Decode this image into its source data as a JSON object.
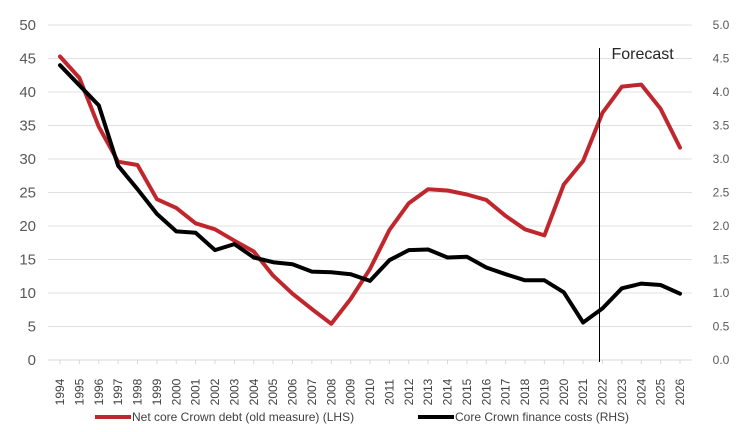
{
  "chart_data": {
    "type": "line",
    "x": [
      "1994",
      "1995",
      "1996",
      "1997",
      "1998",
      "1999",
      "2000",
      "2001",
      "2002",
      "2003",
      "2004",
      "2005",
      "2006",
      "2007",
      "2008",
      "2009",
      "2010",
      "2011",
      "2012",
      "2013",
      "2014",
      "2015",
      "2016",
      "2017",
      "2018",
      "2019",
      "2020",
      "2021",
      "2022",
      "2023",
      "2024",
      "2025",
      "2026"
    ],
    "ylim_left": [
      0,
      50
    ],
    "yticks_left": [
      "0",
      "5",
      "10",
      "15",
      "20",
      "25",
      "30",
      "35",
      "40",
      "45",
      "50"
    ],
    "ylim_right": [
      0,
      5
    ],
    "yticks_right": [
      "0.0",
      "0.5",
      "1.0",
      "1.5",
      "2.0",
      "2.5",
      "3.0",
      "3.5",
      "4.0",
      "4.5",
      "5.0"
    ],
    "grid": true,
    "legend_position": "bottom",
    "annotation": {
      "text": "Forecast",
      "x": "2022"
    },
    "series": [
      {
        "name": "Net core Crown debt (old measure) (LHS)",
        "axis": "left",
        "color": "#c0272d",
        "values": [
          45.3,
          42.1,
          34.8,
          29.6,
          29.1,
          24.0,
          22.7,
          20.4,
          19.5,
          17.8,
          16.2,
          12.6,
          9.9,
          7.6,
          5.4,
          9.1,
          13.6,
          19.4,
          23.4,
          25.5,
          25.3,
          24.7,
          23.9,
          21.5,
          19.5,
          18.6,
          26.2,
          29.7,
          36.9,
          40.8,
          41.1,
          37.5,
          31.7
        ]
      },
      {
        "name": "Core Crown finance costs (RHS)",
        "axis": "right",
        "color": "#000000",
        "values": [
          4.4,
          4.1,
          3.8,
          2.9,
          2.55,
          2.18,
          1.92,
          1.9,
          1.64,
          1.73,
          1.53,
          1.46,
          1.43,
          1.32,
          1.31,
          1.28,
          1.18,
          1.49,
          1.64,
          1.65,
          1.53,
          1.54,
          1.38,
          1.28,
          1.19,
          1.19,
          1.01,
          0.56,
          0.77,
          1.07,
          1.14,
          1.12,
          0.99
        ]
      }
    ]
  }
}
